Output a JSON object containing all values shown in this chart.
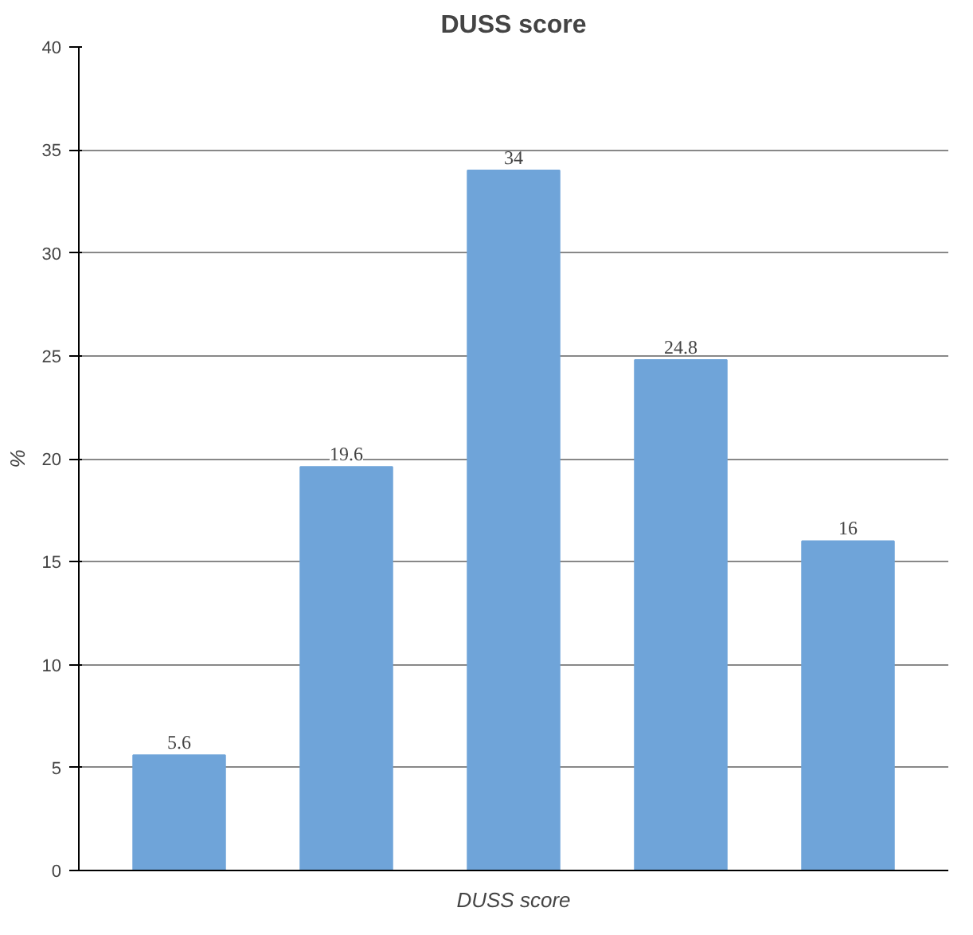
{
  "chart_data": {
    "type": "bar",
    "title": "DUSS score",
    "xlabel": "DUSS score",
    "ylabel": "%",
    "categories": [
      null,
      null,
      null,
      null,
      null
    ],
    "values": [
      5.6,
      19.6,
      34,
      24.8,
      16
    ],
    "color": "#6fa4d9",
    "ylim": [
      0,
      40
    ],
    "yticks": [
      0,
      5,
      10,
      15,
      20,
      25,
      30,
      35,
      40
    ],
    "grid": "y",
    "data_labels": true
  }
}
